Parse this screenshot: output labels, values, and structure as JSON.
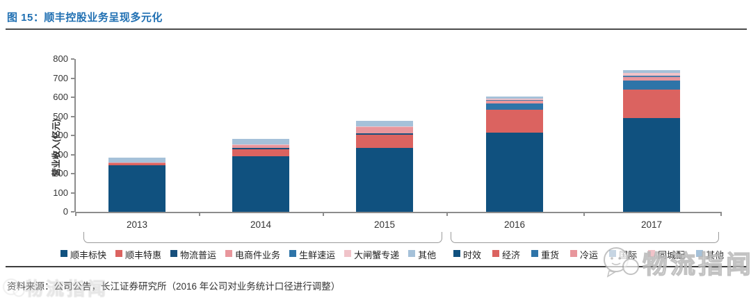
{
  "figure": {
    "title": "图 15：顺丰控股业务呈现多元化",
    "source_note": "资料来源：公司公告，长江证券研究所（2016 年公司对业务统计口径进行调整）",
    "watermark": "物流指闻"
  },
  "chart_data": {
    "type": "bar",
    "stacked": true,
    "title": "",
    "xlabel": "",
    "ylabel": "营业收入(亿元)",
    "ylim": [
      0,
      800
    ],
    "ytick_step": 100,
    "grid": false,
    "legend_position": "bottom",
    "categories": [
      "2013",
      "2014",
      "2015",
      "2016",
      "2017"
    ],
    "groups": [
      {
        "categories": [
          "2013",
          "2014",
          "2015"
        ],
        "series": [
          {
            "name": "顺丰标快",
            "color": "#10517F",
            "values": [
              242,
              290,
              336
            ]
          },
          {
            "name": "顺丰特惠",
            "color": "#DB6360",
            "values": [
              14,
              37,
              66
            ]
          },
          {
            "name": "物流普运",
            "color": "#174F7C",
            "values": [
              2,
              7,
              10
            ]
          },
          {
            "name": "电商件业务",
            "color": "#E8969C",
            "values": [
              2,
              18,
              33
            ]
          },
          {
            "name": "生鲜速运",
            "color": "#2E74A8",
            "values": [
              0,
              1,
              1
            ]
          },
          {
            "name": "大闸蟹专递",
            "color": "#F0C3C9",
            "values": [
              0,
              1,
              2
            ]
          },
          {
            "name": "其他",
            "color": "#A5C1D9",
            "values": [
              25,
              28,
              30
            ]
          }
        ]
      },
      {
        "categories": [
          "2016",
          "2017"
        ],
        "series": [
          {
            "name": "时效",
            "color": "#10517F",
            "values": [
              415,
              490
            ]
          },
          {
            "name": "经济",
            "color": "#DB6360",
            "values": [
              118,
              150
            ]
          },
          {
            "name": "重货",
            "color": "#2E74A8",
            "values": [
              33,
              48
            ]
          },
          {
            "name": "冷运",
            "color": "#E8969C",
            "values": [
              15,
              17
            ]
          },
          {
            "name": "国际",
            "color": "#4C7BA8",
            "values": [
              5,
              8
            ]
          },
          {
            "name": "同城配",
            "color": "#F0C3C9",
            "values": [
              6,
              15
            ]
          },
          {
            "name": "其他",
            "color": "#A5C1D9",
            "values": [
              11,
              13
            ]
          }
        ]
      }
    ]
  }
}
